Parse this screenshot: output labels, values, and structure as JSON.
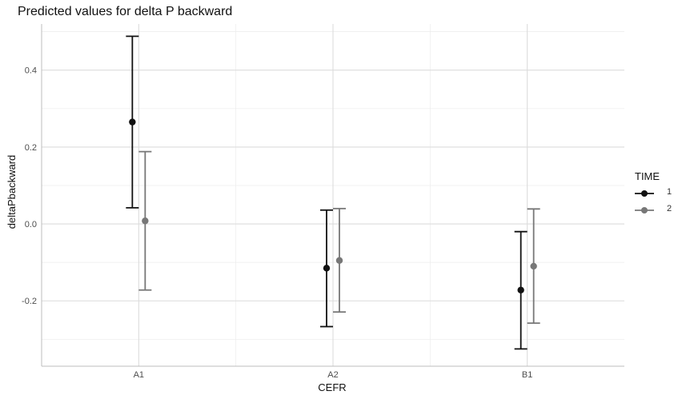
{
  "chart_data": {
    "type": "scatter",
    "title": "Predicted values for delta P backward",
    "xlabel": "CEFR",
    "ylabel": "deltaPbackward",
    "categories": [
      "A1",
      "A2",
      "B1"
    ],
    "yticks": [
      "0.4",
      "0.2",
      "0.0",
      "-0.2"
    ],
    "ylim": [
      -0.37,
      0.52
    ],
    "grid": true,
    "legend": {
      "title": "TIME",
      "placement": "right"
    },
    "series": [
      {
        "name": "1",
        "color": "#111111",
        "values": [
          0.265,
          -0.115,
          -0.172
        ],
        "lower": [
          0.042,
          -0.267,
          -0.325
        ],
        "upper": [
          0.488,
          0.036,
          -0.02
        ]
      },
      {
        "name": "2",
        "color": "#777777",
        "values": [
          0.008,
          -0.095,
          -0.11
        ],
        "lower": [
          -0.172,
          -0.229,
          -0.258
        ],
        "upper": [
          0.188,
          0.04,
          0.039
        ]
      }
    ]
  }
}
